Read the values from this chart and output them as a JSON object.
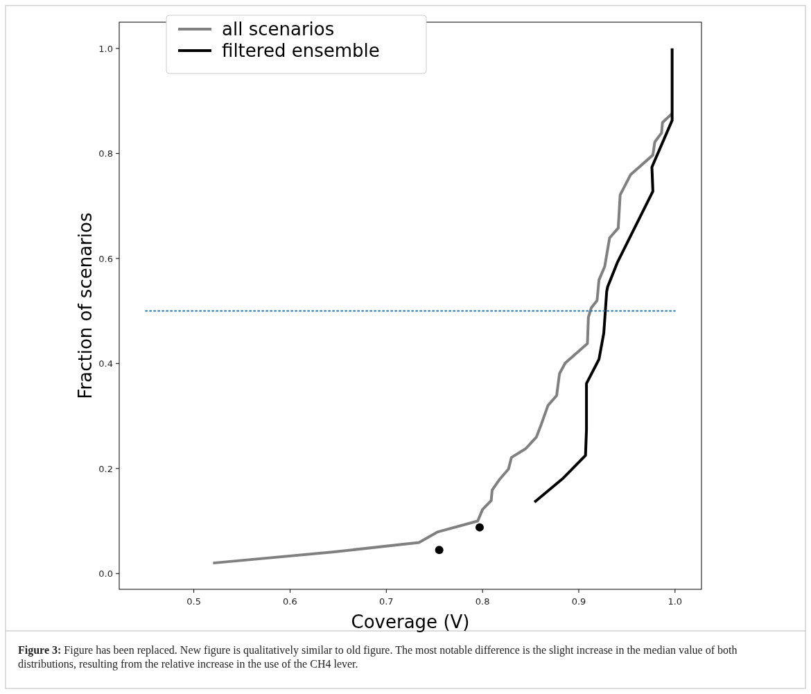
{
  "chart_data": {
    "type": "line",
    "xlabel": "Coverage (V)",
    "ylabel": "Fraction of scenarios",
    "xlim": [
      0.4225,
      1.0275
    ],
    "ylim": [
      -0.03,
      1.05
    ],
    "xticks": [
      {
        "value": 0.5,
        "label": "0.5"
      },
      {
        "value": 0.6,
        "label": "0.6"
      },
      {
        "value": 0.7,
        "label": "0.7"
      },
      {
        "value": 0.8,
        "label": "0.8"
      },
      {
        "value": 0.9,
        "label": "0.9"
      },
      {
        "value": 1.0,
        "label": "1.0"
      }
    ],
    "yticks": [
      {
        "value": 0,
        "label": "0.0"
      },
      {
        "value": 0.2,
        "label": "0.2"
      },
      {
        "value": 0.4,
        "label": "0.4"
      },
      {
        "value": 0.6,
        "label": "0.6"
      },
      {
        "value": 0.8,
        "label": "0.8"
      },
      {
        "value": 1.0,
        "label": "1.0"
      }
    ],
    "legend": "top left",
    "grid": false,
    "series": [
      {
        "name": "all scenarios",
        "color": "#808080",
        "x": [
          0.52,
          0.644,
          0.734,
          0.753,
          0.795,
          0.8,
          0.809,
          0.81,
          0.818,
          0.827,
          0.83,
          0.845,
          0.856,
          0.861,
          0.868,
          0.877,
          0.88,
          0.886,
          0.909,
          0.91,
          0.913,
          0.919,
          0.921,
          0.927,
          0.932,
          0.941,
          0.943,
          0.954,
          0.977,
          0.979,
          0.986,
          0.987,
          0.997
        ],
        "values": [
          0.02,
          0.041,
          0.059,
          0.079,
          0.1,
          0.122,
          0.139,
          0.159,
          0.18,
          0.199,
          0.221,
          0.238,
          0.26,
          0.284,
          0.32,
          0.339,
          0.381,
          0.401,
          0.438,
          0.488,
          0.506,
          0.52,
          0.559,
          0.585,
          0.639,
          0.658,
          0.721,
          0.76,
          0.797,
          0.822,
          0.839,
          0.859,
          0.876
        ]
      },
      {
        "name": "filtered ensemble",
        "color": "#000000",
        "x": [
          0.854,
          0.884,
          0.907,
          0.908,
          0.908,
          0.921,
          0.926,
          0.929,
          0.93,
          0.94,
          0.977,
          0.976,
          0.997,
          0.997
        ],
        "values": [
          0.136,
          0.182,
          0.225,
          0.274,
          0.362,
          0.408,
          0.458,
          0.537,
          0.546,
          0.592,
          0.728,
          0.774,
          0.863,
          1.0
        ]
      },
      {
        "type": "scatter",
        "color": "#000000",
        "marker": "circle",
        "x": [
          0.755,
          0.797
        ],
        "values": [
          0.045,
          0.088
        ]
      },
      {
        "color": "#1f77b4",
        "line_style": "dotted",
        "x": [
          0.45,
          1.0
        ],
        "values": [
          0.5,
          0.5
        ]
      }
    ],
    "annotations": [
      "Figure 3: Figure has been replaced. New figure is qualitatively similar to old figure. The most notable difference is the slight increase in the median value of both distributions, resulting from the relative increase in the use of the CH4 lever."
    ]
  }
}
